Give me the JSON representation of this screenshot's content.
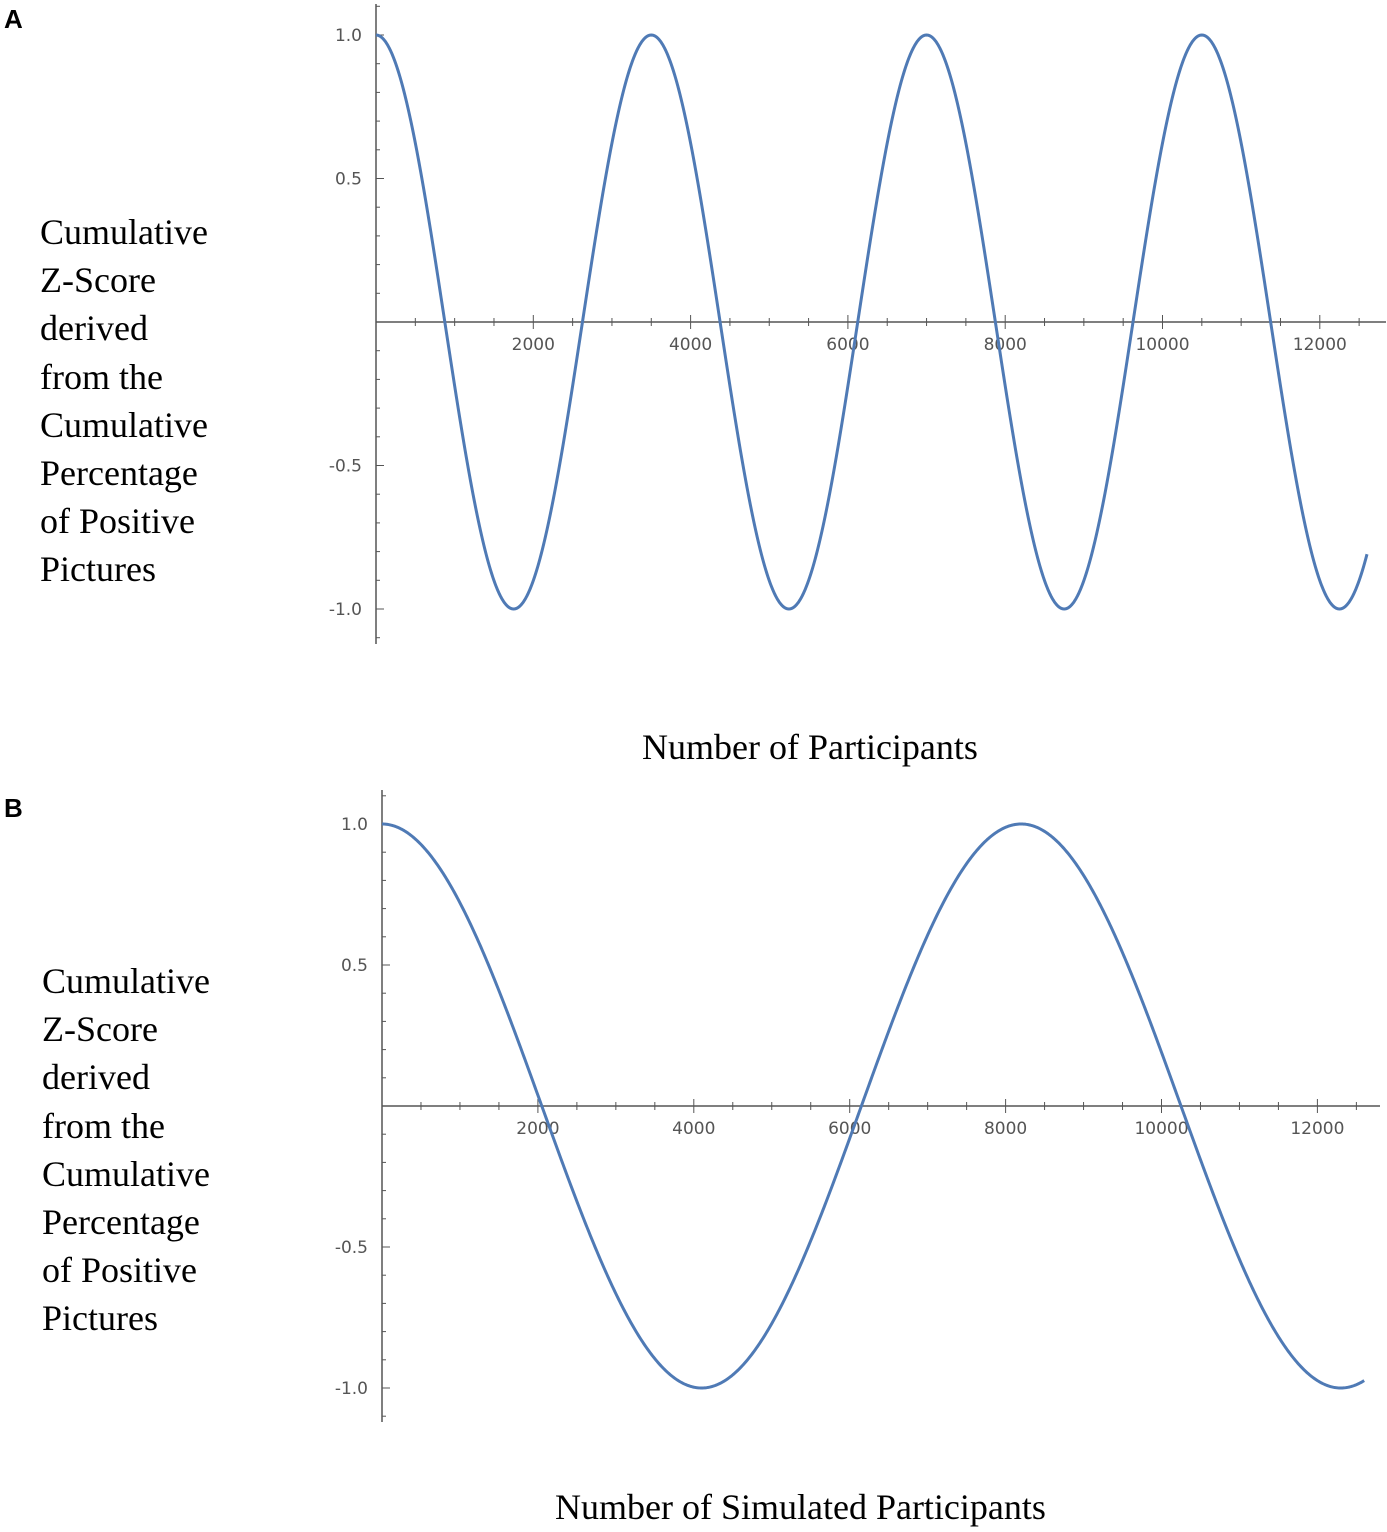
{
  "chart_data": [
    {
      "panel": "A",
      "type": "line",
      "x_axis_label": "Number of Participants",
      "y_axis_label_lines": [
        "Cumulative",
        "Z-Score",
        "derived",
        "from the",
        "Cumulative",
        "Percentage",
        "of Positive",
        "Pictures"
      ],
      "xlim": [
        0,
        12700
      ],
      "ylim": [
        -1.1,
        1.1
      ],
      "x_ticks": [
        2000,
        4000,
        6000,
        8000,
        10000,
        12000
      ],
      "x_tick_labels": [
        "2000",
        "4000",
        "6000",
        "8000",
        "10000",
        "12000"
      ],
      "y_ticks": [
        1.0,
        0.5,
        -0.5,
        -1.0
      ],
      "y_tick_labels": [
        "1.0",
        "0.5",
        "-0.5",
        "-1.0"
      ],
      "series": [
        {
          "function": "cosine",
          "amplitude": 1.0,
          "period": 3500,
          "x_range": [
            0,
            12600
          ],
          "sample_points": [
            [
              0,
              1.0
            ],
            [
              875,
              0.0
            ],
            [
              1750,
              -1.0
            ],
            [
              2625,
              0.0
            ],
            [
              3500,
              1.0
            ],
            [
              4375,
              0.0
            ],
            [
              5250,
              -1.0
            ],
            [
              6125,
              0.0
            ],
            [
              7000,
              1.0
            ],
            [
              7875,
              0.0
            ],
            [
              8750,
              -1.0
            ],
            [
              9625,
              0.0
            ],
            [
              10500,
              1.0
            ],
            [
              11375,
              0.0
            ],
            [
              12250,
              -1.0
            ],
            [
              12600,
              -0.81
            ]
          ],
          "color": "#4f7ab5"
        }
      ]
    },
    {
      "panel": "B",
      "type": "line",
      "x_axis_label": "Number of Simulated Participants",
      "y_axis_label_lines": [
        "Cumulative",
        "Z-Score",
        "derived",
        "from the",
        "Cumulative",
        "Percentage",
        "of Positive",
        "Pictures"
      ],
      "xlim": [
        0,
        12700
      ],
      "ylim": [
        -1.1,
        1.1
      ],
      "x_ticks": [
        2000,
        4000,
        6000,
        8000,
        10000,
        12000
      ],
      "x_tick_labels": [
        "2000",
        "4000",
        "6000",
        "8000",
        "10000",
        "12000"
      ],
      "y_ticks": [
        1.0,
        0.5,
        -0.5,
        -1.0
      ],
      "y_tick_labels": [
        "1.0",
        "0.5",
        "-0.5",
        "-1.0"
      ],
      "series": [
        {
          "function": "cosine",
          "amplitude": 1.0,
          "period": 8200,
          "x_range": [
            0,
            12600
          ],
          "sample_points": [
            [
              0,
              1.0
            ],
            [
              2050,
              0.0
            ],
            [
              4100,
              -1.0
            ],
            [
              6150,
              0.0
            ],
            [
              8200,
              1.0
            ],
            [
              10250,
              0.0
            ],
            [
              12300,
              -1.0
            ],
            [
              12600,
              -0.97
            ]
          ],
          "color": "#4f7ab5"
        }
      ]
    }
  ]
}
